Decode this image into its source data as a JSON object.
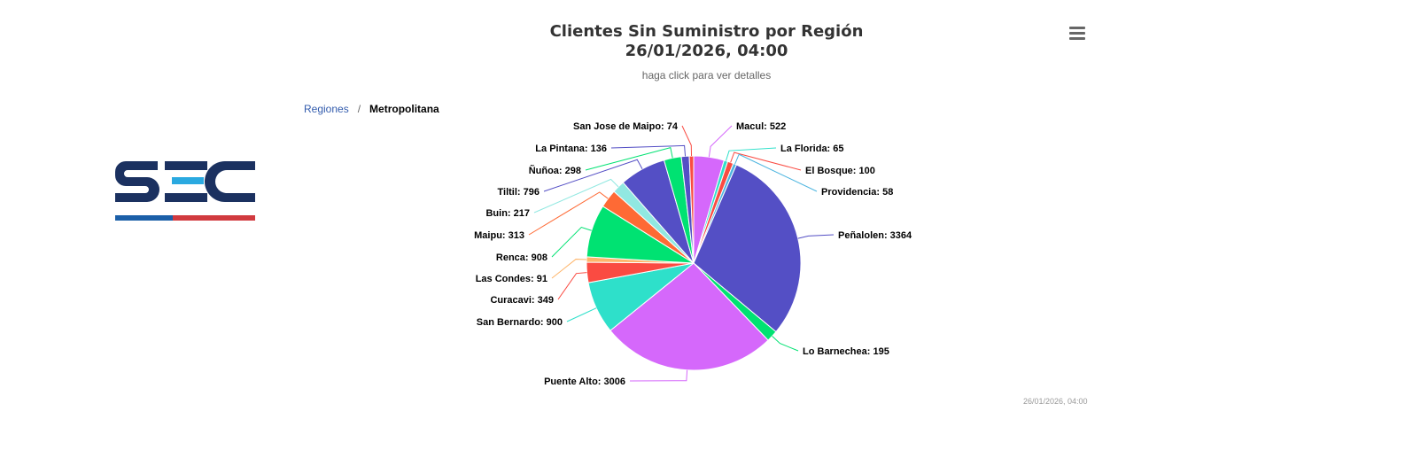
{
  "header": {
    "title_line1": "Clientes Sin Suministro por Región",
    "title_line2": "26/01/2026, 04:00",
    "subtitle": "haga click para ver detalles"
  },
  "logo": {
    "text": "SEC",
    "colors": [
      "#1b3160",
      "#2aa9e0",
      "#d13a3f"
    ]
  },
  "breadcrumb": {
    "root": "Regiones",
    "separator": "/",
    "current": "Metropolitana"
  },
  "menu": {
    "icon": "hamburger-menu-icon"
  },
  "credits": "26/01/2026, 04:00",
  "chart_data": {
    "type": "pie",
    "slices": [
      {
        "name": "Macul",
        "value": 522,
        "color": "#d568fb"
      },
      {
        "name": "La Florida",
        "value": 65,
        "color": "#2ee0ca"
      },
      {
        "name": "El Bosque",
        "value": 100,
        "color": "#fa4b42"
      },
      {
        "name": "Providencia",
        "value": 58,
        "color": "#4fb6e0"
      },
      {
        "name": "Peñalolen",
        "value": 3364,
        "color": "#544fc5"
      },
      {
        "name": "Lo Barnechea",
        "value": 195,
        "color": "#00e272"
      },
      {
        "name": "Puente Alto",
        "value": 3006,
        "color": "#d568fb"
      },
      {
        "name": "San Bernardo",
        "value": 900,
        "color": "#2ee0ca"
      },
      {
        "name": "Curacavi",
        "value": 349,
        "color": "#fa4b42"
      },
      {
        "name": "Las Condes",
        "value": 91,
        "color": "#feb56a"
      },
      {
        "name": "Renca",
        "value": 908,
        "color": "#00e272"
      },
      {
        "name": "Maipu",
        "value": 313,
        "color": "#fe6a35"
      },
      {
        "name": "Buin",
        "value": 217,
        "color": "#91e8e1"
      },
      {
        "name": "Tiltil",
        "value": 796,
        "color": "#544fc5"
      },
      {
        "name": "Ñuñoa",
        "value": 298,
        "color": "#00e272"
      },
      {
        "name": "La Pintana",
        "value": 136,
        "color": "#544fc5"
      },
      {
        "name": "San Jose de Maipo",
        "value": 74,
        "color": "#fa4b42"
      }
    ]
  }
}
